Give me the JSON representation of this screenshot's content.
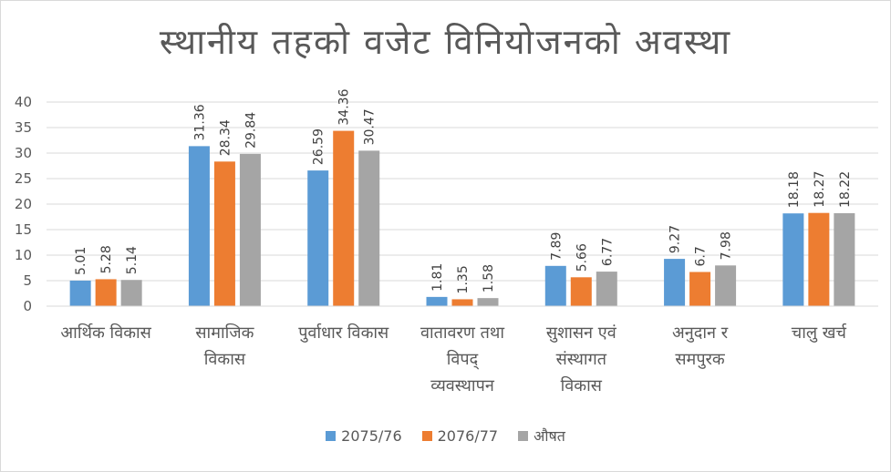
{
  "chart_data": {
    "type": "bar",
    "title": "स्थानीय तहको वजेट विनियोजनको अवस्था",
    "categories": [
      [
        "आर्थिक विकास"
      ],
      [
        "सामाजिक",
        "विकास"
      ],
      [
        "पुर्वाधार विकास"
      ],
      [
        "वातावरण तथा",
        "विपद्",
        "व्यवस्थापन"
      ],
      [
        "सुशासन एवं",
        "संस्थागत",
        "विकास"
      ],
      [
        "अनुदान र",
        "समपुरक"
      ],
      [
        "चालु खर्च"
      ]
    ],
    "series": [
      {
        "name": "2075/76",
        "color": "#5B9BD5",
        "values": [
          5.01,
          31.36,
          26.59,
          1.81,
          7.89,
          9.27,
          18.18
        ]
      },
      {
        "name": "2076/77",
        "color": "#ED7D31",
        "values": [
          5.28,
          28.34,
          34.36,
          1.35,
          5.66,
          6.7,
          18.27
        ]
      },
      {
        "name": "औषत",
        "color": "#A5A5A5",
        "values": [
          5.14,
          29.84,
          30.47,
          1.58,
          6.77,
          7.98,
          18.22
        ]
      }
    ],
    "ylim": [
      0,
      40
    ],
    "yticks": [
      0,
      5,
      10,
      15,
      20,
      25,
      30,
      35,
      40
    ],
    "grid": true,
    "legend": "bottom"
  }
}
